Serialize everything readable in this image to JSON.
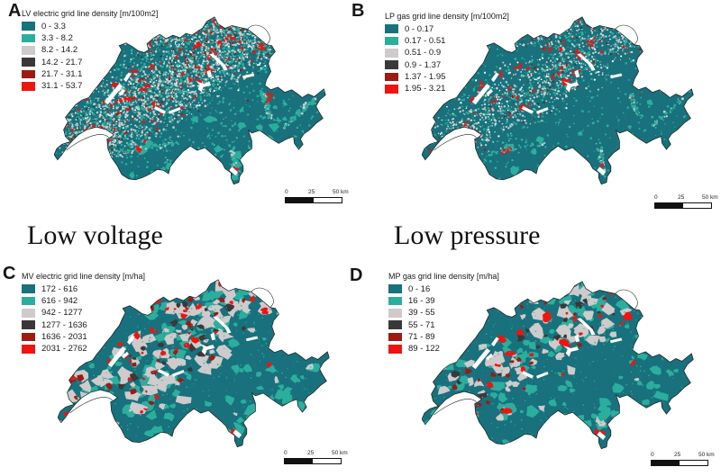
{
  "figure": {
    "captions": {
      "left": "Low voltage",
      "right": "Low pressure"
    },
    "scalebar": {
      "t0": "0",
      "t25": "25",
      "t50": "50 km"
    },
    "panels": [
      {
        "letter": "A",
        "legend_title": "LV electric grid line density [m/100m2]",
        "classes": [
          {
            "label": "0 - 3.3",
            "color": "#18717C"
          },
          {
            "label": "3.3 - 8.2",
            "color": "#2BAE9E"
          },
          {
            "label": "8.2 - 14.2",
            "color": "#CFCACB"
          },
          {
            "label": "14.2 - 21.7",
            "color": "#3B3839"
          },
          {
            "label": "21.7 - 31.1",
            "color": "#9E1A12"
          },
          {
            "label": "31.1 - 53.7",
            "color": "#EF1410"
          }
        ]
      },
      {
        "letter": "B",
        "legend_title": "LP gas grid line density [m/100m2]",
        "classes": [
          {
            "label": "0 - 0.17",
            "color": "#18717C"
          },
          {
            "label": "0.17 - 0.51",
            "color": "#2BAE9E"
          },
          {
            "label": "0.51 - 0.9",
            "color": "#CFCACB"
          },
          {
            "label": "0.9 - 1.37",
            "color": "#3B3839"
          },
          {
            "label": "1.37 - 1.95",
            "color": "#9E1A12"
          },
          {
            "label": "1.95 - 3.21",
            "color": "#EF1410"
          }
        ]
      },
      {
        "letter": "C",
        "legend_title": "MV electric grid line density [m/ha]",
        "classes": [
          {
            "label": "172 - 616",
            "color": "#18717C"
          },
          {
            "label": "616 - 942",
            "color": "#2BAE9E"
          },
          {
            "label": "942 - 1277",
            "color": "#CFCACB"
          },
          {
            "label": "1277 - 1636",
            "color": "#3B3839"
          },
          {
            "label": "1636 - 2031",
            "color": "#9E1A12"
          },
          {
            "label": "2031 - 2762",
            "color": "#EF1410"
          }
        ]
      },
      {
        "letter": "D",
        "legend_title": "MP gas grid line density [m/ha]",
        "classes": [
          {
            "label": "0 - 16",
            "color": "#18717C"
          },
          {
            "label": "16 - 39",
            "color": "#2BAE9E"
          },
          {
            "label": "39 - 55",
            "color": "#CFCACB"
          },
          {
            "label": "55 - 71",
            "color": "#3B3839"
          },
          {
            "label": "71 - 89",
            "color": "#9E1A12"
          },
          {
            "label": "89 - 122",
            "color": "#EF1410"
          }
        ]
      }
    ]
  },
  "chart_data": [
    {
      "type": "choropleth_map",
      "panel": "A",
      "region": "Switzerland",
      "title": "LV electric grid line density [m/100m2]",
      "class_breaks": [
        0,
        3.3,
        8.2,
        14.2,
        21.7,
        31.1,
        53.7
      ],
      "colors": [
        "#18717C",
        "#2BAE9E",
        "#CFCACB",
        "#3B3839",
        "#9E1A12",
        "#EF1410"
      ],
      "legend_position": "top-left",
      "scale_km": [
        0,
        25,
        50
      ]
    },
    {
      "type": "choropleth_map",
      "panel": "B",
      "region": "Switzerland",
      "title": "LP gas grid line density [m/100m2]",
      "class_breaks": [
        0,
        0.17,
        0.51,
        0.9,
        1.37,
        1.95,
        3.21
      ],
      "colors": [
        "#18717C",
        "#2BAE9E",
        "#CFCACB",
        "#3B3839",
        "#9E1A12",
        "#EF1410"
      ],
      "legend_position": "top-left",
      "scale_km": [
        0,
        25,
        50
      ]
    },
    {
      "type": "choropleth_map",
      "panel": "C",
      "region": "Switzerland",
      "title": "MV electric grid line density [m/ha]",
      "class_breaks": [
        172,
        616,
        942,
        1277,
        1636,
        2031,
        2762
      ],
      "colors": [
        "#18717C",
        "#2BAE9E",
        "#CFCACB",
        "#3B3839",
        "#9E1A12",
        "#EF1410"
      ],
      "legend_position": "top-left",
      "scale_km": [
        0,
        25,
        50
      ]
    },
    {
      "type": "choropleth_map",
      "panel": "D",
      "region": "Switzerland",
      "title": "MP gas grid line density [m/ha]",
      "class_breaks": [
        0,
        16,
        39,
        55,
        71,
        89,
        122
      ],
      "colors": [
        "#18717C",
        "#2BAE9E",
        "#CFCACB",
        "#3B3839",
        "#9E1A12",
        "#EF1410"
      ],
      "legend_position": "top-left",
      "scale_km": [
        0,
        25,
        50
      ]
    }
  ]
}
